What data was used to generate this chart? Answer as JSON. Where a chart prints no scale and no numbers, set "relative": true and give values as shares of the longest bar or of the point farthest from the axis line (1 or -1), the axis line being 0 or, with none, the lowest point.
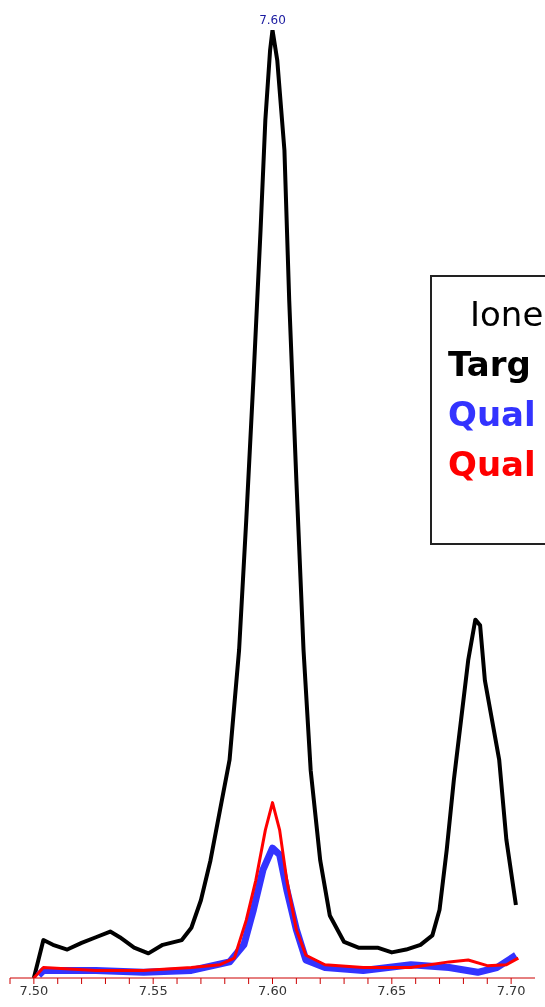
{
  "chart_data": {
    "type": "line",
    "relative": true,
    "legend": "right",
    "legend_title": "Ione",
    "marker": "none",
    "grid": false,
    "tick_labels": "x",
    "xlim": [
      7.49,
      7.71
    ],
    "xticks": [
      {
        "value": 7.49,
        "label": null
      },
      {
        "value": 7.5,
        "label": "7.50"
      },
      {
        "value": 7.51,
        "label": null
      },
      {
        "value": 7.52,
        "label": null
      },
      {
        "value": 7.53,
        "label": null
      },
      {
        "value": 7.54,
        "label": null
      },
      {
        "value": 7.55,
        "label": "7.55"
      },
      {
        "value": 7.56,
        "label": null
      },
      {
        "value": 7.57,
        "label": null
      },
      {
        "value": 7.58,
        "label": null
      },
      {
        "value": 7.59,
        "label": null
      },
      {
        "value": 7.6,
        "label": "7.60"
      },
      {
        "value": 7.61,
        "label": null
      },
      {
        "value": 7.62,
        "label": null
      },
      {
        "value": 7.63,
        "label": null
      },
      {
        "value": 7.64,
        "label": null
      },
      {
        "value": 7.65,
        "label": "7.65"
      },
      {
        "value": 7.66,
        "label": null
      },
      {
        "value": 7.67,
        "label": null
      },
      {
        "value": 7.68,
        "label": null
      },
      {
        "value": 7.69,
        "label": null
      },
      {
        "value": 7.7,
        "label": "7.70"
      }
    ],
    "annotations": [
      {
        "text": "7.60",
        "x": 7.6,
        "y": 1
      }
    ],
    "series": [
      {
        "name": "Targ",
        "color": "#000000",
        "x": [
          7.5,
          7.504,
          7.508,
          7.514,
          7.52,
          7.526,
          7.532,
          7.536,
          7.542,
          7.548,
          7.554,
          7.562,
          7.566,
          7.57,
          7.574,
          7.578,
          7.582,
          7.586,
          7.589,
          7.592,
          7.595,
          7.597,
          7.599,
          7.6,
          7.602,
          7.605,
          7.607,
          7.61,
          7.613,
          7.616,
          7.62,
          7.624,
          7.63,
          7.636,
          7.644,
          7.65,
          7.656,
          7.662,
          7.667,
          7.67,
          7.673,
          7.676,
          7.679,
          7.682,
          7.685,
          7.687,
          7.689,
          7.692,
          7.695,
          7.698,
          7.702
        ],
        "values": [
          0,
          0.04,
          0.035,
          0.03,
          0.037,
          0.043,
          0.049,
          0.043,
          0.032,
          0.026,
          0.035,
          0.04,
          0.053,
          0.082,
          0.124,
          0.177,
          0.23,
          0.346,
          0.483,
          0.631,
          0.789,
          0.905,
          0.979,
          1,
          0.968,
          0.873,
          0.715,
          0.525,
          0.346,
          0.219,
          0.124,
          0.066,
          0.038,
          0.032,
          0.032,
          0.027,
          0.03,
          0.035,
          0.045,
          0.072,
          0.135,
          0.209,
          0.272,
          0.335,
          0.378,
          0.372,
          0.314,
          0.272,
          0.23,
          0.146,
          0.077
        ]
      },
      {
        "name": "Qual",
        "color": "#3333ff",
        "x": [
          7.502,
          7.504,
          7.526,
          7.546,
          7.566,
          7.582,
          7.588,
          7.592,
          7.596,
          7.6,
          7.603,
          7.606,
          7.61,
          7.614,
          7.622,
          7.638,
          7.658,
          7.674,
          7.686,
          7.694,
          7.702
        ],
        "values": [
          0.003,
          0.008,
          0.008,
          0.006,
          0.008,
          0.017,
          0.035,
          0.072,
          0.114,
          0.137,
          0.13,
          0.093,
          0.051,
          0.019,
          0.011,
          0.008,
          0.014,
          0.011,
          0.006,
          0.011,
          0.024
        ]
      },
      {
        "name": "Qual",
        "color": "#ff0000",
        "x": [
          7.5,
          7.504,
          7.526,
          7.546,
          7.566,
          7.578,
          7.584,
          7.589,
          7.593,
          7.597,
          7.6,
          7.603,
          7.606,
          7.61,
          7.614,
          7.622,
          7.638,
          7.658,
          7.674,
          7.682,
          7.69,
          7.698,
          7.703
        ],
        "values": [
          0,
          0.011,
          0.008,
          0.008,
          0.011,
          0.014,
          0.021,
          0.061,
          0.103,
          0.156,
          0.185,
          0.156,
          0.103,
          0.051,
          0.024,
          0.014,
          0.011,
          0.011,
          0.017,
          0.019,
          0.013,
          0.014,
          0.021
        ]
      }
    ]
  }
}
